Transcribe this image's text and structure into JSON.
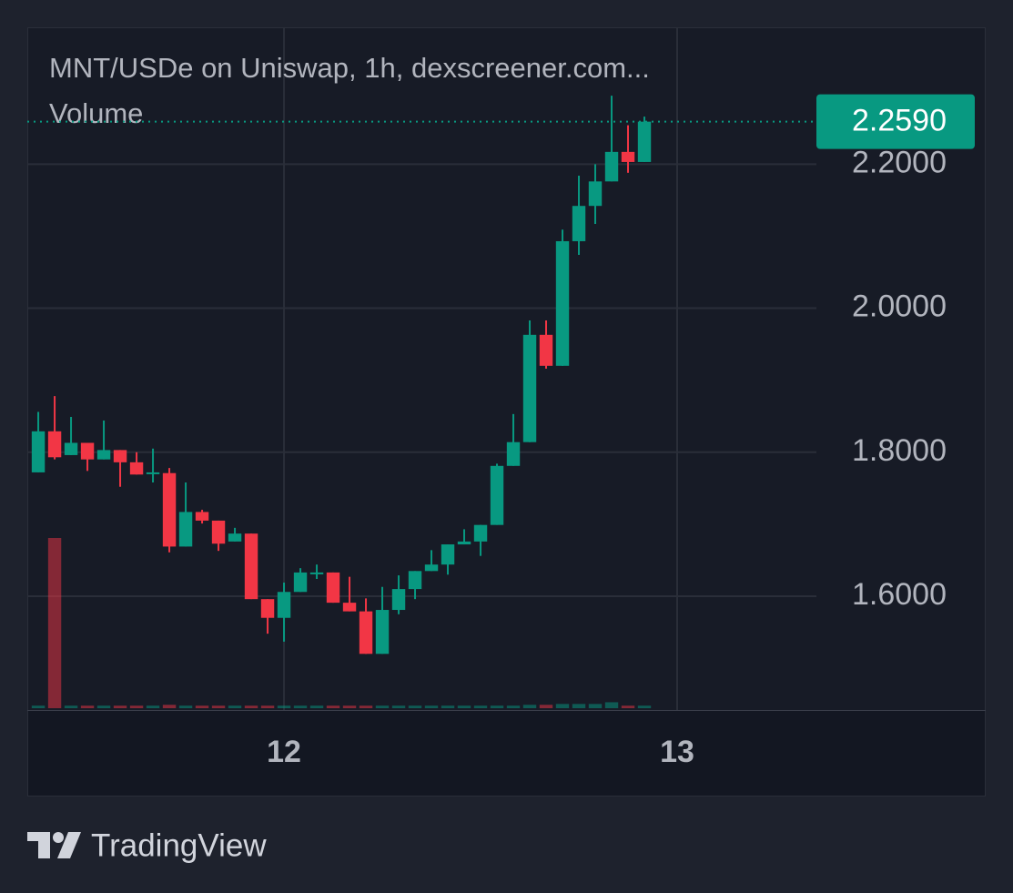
{
  "chart_data": {
    "type": "candlestick",
    "title": "MNT/USDe on Uniswap, 1h, dexscreener.com...",
    "volume_label": "Volume",
    "x": [
      -15,
      -14,
      -13,
      -12,
      -11,
      -10,
      -9,
      -8,
      -7,
      -6,
      -5,
      -4,
      -3,
      -2,
      -1,
      0,
      1,
      2,
      3,
      4,
      5,
      6,
      7,
      8,
      9,
      10,
      11,
      12,
      13,
      14,
      15,
      16,
      17,
      18,
      19,
      20,
      21,
      22
    ],
    "open": [
      1.772,
      1.829,
      1.796,
      1.813,
      1.79,
      1.803,
      1.786,
      1.77,
      1.771,
      1.669,
      1.717,
      1.705,
      1.676,
      1.687,
      1.596,
      1.57,
      1.606,
      1.631,
      1.633,
      1.591,
      1.579,
      1.52,
      1.581,
      1.61,
      1.635,
      1.644,
      1.672,
      1.676,
      1.699,
      1.781,
      1.814,
      1.963,
      1.92,
      2.093,
      2.142,
      2.176,
      2.217,
      2.203
    ],
    "high": [
      1.856,
      1.878,
      1.849,
      1.813,
      1.844,
      1.803,
      1.8,
      1.805,
      1.778,
      1.758,
      1.72,
      1.705,
      1.695,
      1.687,
      1.596,
      1.619,
      1.639,
      1.644,
      1.633,
      1.627,
      1.597,
      1.613,
      1.629,
      1.635,
      1.664,
      1.672,
      1.693,
      1.699,
      1.784,
      1.853,
      1.983,
      1.983,
      2.109,
      2.184,
      2.2,
      2.295,
      2.254,
      2.266
    ],
    "low": [
      1.772,
      1.79,
      1.796,
      1.774,
      1.79,
      1.752,
      1.769,
      1.758,
      1.661,
      1.669,
      1.701,
      1.663,
      1.676,
      1.596,
      1.548,
      1.537,
      1.606,
      1.624,
      1.591,
      1.579,
      1.52,
      1.52,
      1.575,
      1.596,
      1.635,
      1.63,
      1.672,
      1.656,
      1.699,
      1.781,
      1.814,
      1.916,
      1.92,
      2.074,
      2.117,
      2.176,
      2.188,
      2.203
    ],
    "close": [
      1.829,
      1.793,
      1.813,
      1.79,
      1.803,
      1.786,
      1.769,
      1.772,
      1.669,
      1.717,
      1.705,
      1.673,
      1.687,
      1.596,
      1.57,
      1.606,
      1.633,
      1.633,
      1.591,
      1.579,
      1.52,
      1.581,
      1.61,
      1.635,
      1.644,
      1.672,
      1.676,
      1.699,
      1.781,
      1.814,
      1.963,
      1.92,
      2.093,
      2.142,
      2.176,
      2.217,
      2.203,
      2.259
    ],
    "volume": [
      1.5,
      100,
      1.5,
      1.5,
      1.5,
      1.5,
      1.5,
      1.5,
      2,
      1.5,
      1.5,
      1.5,
      1.5,
      1.5,
      1.5,
      1.5,
      1.5,
      1.5,
      1.5,
      1.5,
      1.5,
      1.5,
      1.5,
      1.5,
      1.5,
      1.5,
      1.5,
      1.5,
      1.5,
      1.5,
      2,
      2,
      2.5,
      2.5,
      2.5,
      3.5,
      1.5,
      1.5
    ],
    "vlim": [
      0,
      400
    ],
    "up_color": "#089981",
    "down_color": "#f23645",
    "xlim": [
      -15.67,
      32.5
    ],
    "xticks": [
      {
        "value": 0,
        "label": "12"
      },
      {
        "value": 24,
        "label": "13"
      }
    ],
    "ylim": [
      1.442,
      2.39
    ],
    "yticks": [
      {
        "value": 1.6,
        "label": "1.6000"
      },
      {
        "value": 1.8,
        "label": "1.8000"
      },
      {
        "value": 2.0,
        "label": "2.0000"
      },
      {
        "value": 2.2,
        "label": "2.2000"
      }
    ],
    "last_price": {
      "value": 2.259,
      "label": "2.2590"
    },
    "grid": true
  },
  "footer": {
    "brand": "TradingView"
  }
}
